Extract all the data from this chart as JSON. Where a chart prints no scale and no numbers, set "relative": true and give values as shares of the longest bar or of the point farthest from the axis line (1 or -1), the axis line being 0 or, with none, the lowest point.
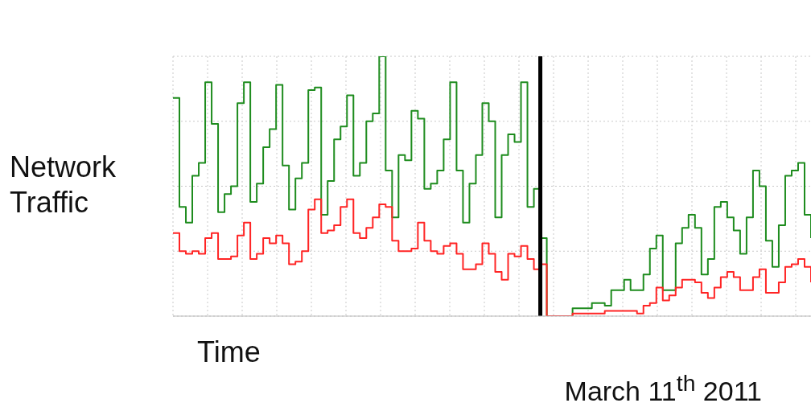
{
  "chart_data": {
    "type": "step",
    "relative": true,
    "ylabel": "Network Traffic",
    "xlabel": "Time",
    "grid": true,
    "marker": "none",
    "line_style": "solid",
    "categories": [
      null,
      null,
      null,
      null,
      null,
      null,
      null,
      null,
      null,
      null,
      null,
      null,
      null,
      null,
      null,
      null,
      null,
      null,
      null,
      null,
      null,
      null,
      null,
      null,
      null,
      null,
      null,
      null,
      null,
      null,
      null,
      null,
      null,
      null,
      null,
      null,
      null,
      null,
      null,
      null,
      null,
      null,
      null,
      null,
      null,
      null,
      null,
      null,
      null,
      null,
      null,
      null,
      null,
      null,
      null,
      null,
      null,
      null,
      null,
      null,
      null,
      null,
      null,
      null,
      null,
      null,
      null,
      null,
      null,
      null,
      null,
      null,
      null,
      null,
      null,
      null,
      null,
      null,
      null,
      null,
      null,
      null,
      null,
      null,
      null,
      null,
      null,
      null,
      null,
      null,
      null,
      null,
      null,
      null,
      null,
      null,
      null,
      null,
      null,
      null
    ],
    "series": [
      {
        "color": "#1e8c1e",
        "values": [
          0.84,
          0.42,
          0.36,
          0.54,
          0.59,
          0.9,
          0.74,
          0.4,
          0.47,
          0.5,
          0.82,
          0.9,
          0.44,
          0.51,
          0.65,
          0.72,
          0.89,
          0.58,
          0.41,
          0.53,
          0.59,
          0.87,
          0.88,
          0.39,
          0.52,
          0.68,
          0.73,
          0.85,
          0.54,
          0.59,
          0.75,
          0.78,
          1,
          0.56,
          0.38,
          0.62,
          0.6,
          0.79,
          0.76,
          0.49,
          0.51,
          0.56,
          0.68,
          0.9,
          0.56,
          0.36,
          0.51,
          0.62,
          0.82,
          0.75,
          0.38,
          0.62,
          0.7,
          0.67,
          0.9,
          0.42,
          0.49,
          0.3,
          0,
          0,
          0,
          0,
          0.03,
          0.03,
          0.03,
          0.05,
          0.05,
          0.04,
          0.1,
          0.1,
          0.14,
          0.1,
          0.1,
          0.16,
          0.26,
          0.31,
          0.1,
          0.1,
          0.28,
          0.34,
          0.39,
          0.34,
          0.16,
          0.22,
          0.42,
          0.44,
          0.38,
          0.33,
          0.24,
          0.38,
          0.56,
          0.5,
          0.29,
          0.19,
          0.35,
          0.54,
          0.56,
          0.59,
          0.39,
          0.3
        ]
      },
      {
        "color": "#ff2424",
        "values": [
          0.32,
          0.25,
          0.24,
          0.25,
          0.24,
          0.3,
          0.32,
          0.22,
          0.22,
          0.23,
          0.31,
          0.36,
          0.22,
          0.24,
          0.3,
          0.28,
          0.31,
          0.28,
          0.2,
          0.21,
          0.25,
          0.41,
          0.45,
          0.32,
          0.33,
          0.35,
          0.42,
          0.45,
          0.32,
          0.3,
          0.34,
          0.38,
          0.43,
          0.42,
          0.29,
          0.25,
          0.25,
          0.26,
          0.36,
          0.29,
          0.25,
          0.24,
          0.27,
          0.28,
          0.24,
          0.18,
          0.18,
          0.2,
          0.28,
          0.24,
          0.17,
          0.14,
          0.24,
          0.23,
          0.27,
          0.22,
          0.18,
          0.2,
          0,
          0,
          0,
          0,
          0.01,
          0.01,
          0.01,
          0.01,
          0.01,
          0.02,
          0.02,
          0.02,
          0.02,
          0.02,
          0.01,
          0.04,
          0.05,
          0.11,
          0.06,
          0.08,
          0.11,
          0.14,
          0.14,
          0.13,
          0.09,
          0.07,
          0.11,
          0.15,
          0.17,
          0.15,
          0.1,
          0.1,
          0.15,
          0.18,
          0.09,
          0.09,
          0.13,
          0.19,
          0.2,
          0.22,
          0.19,
          0.13
        ]
      }
    ],
    "ref_lines": [
      {
        "axis": "x",
        "label": "March 11$^{th}$ 2011",
        "color": "#000000"
      }
    ]
  }
}
